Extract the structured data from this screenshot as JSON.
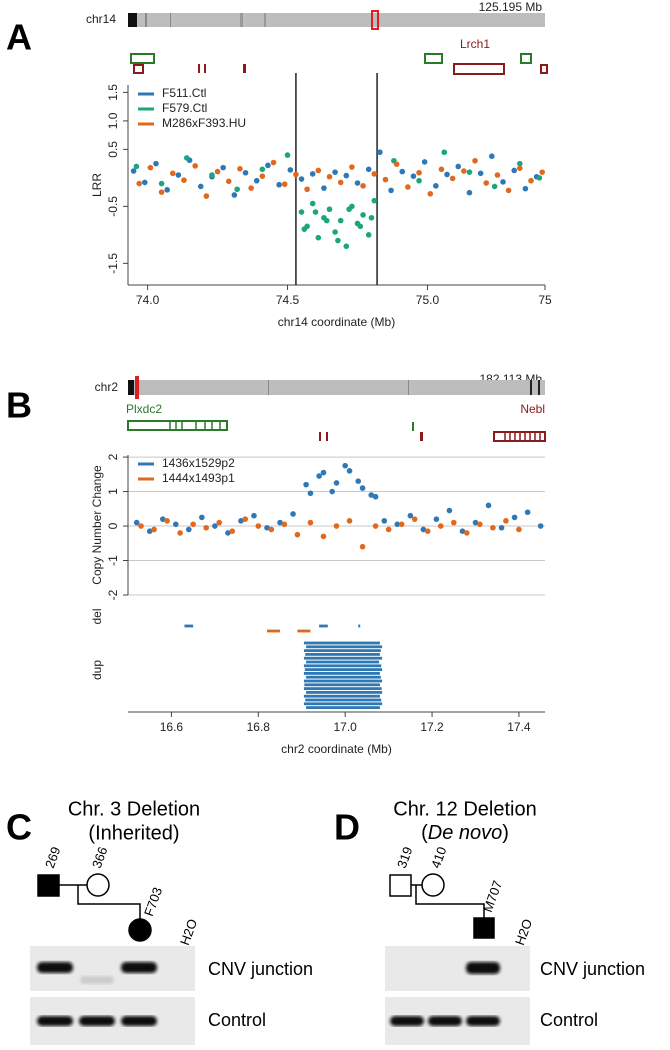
{
  "chart_data": [
    {
      "type": "scatter",
      "panel": "A",
      "chromosome": "chr14",
      "chromosome_size": "125.195 Mb",
      "genes": [
        "Lrch1"
      ],
      "xlabel": "chr14 coordinate (Mb)",
      "ylabel": "LRR",
      "legend": "top-left",
      "xlim": [
        73.93,
        75.42
      ],
      "ylim": [
        -1.88,
        1.63
      ],
      "xticks": [
        {
          "value": 74,
          "label": "74.0"
        },
        74.5,
        {
          "value": 75,
          "label": "75.0"
        },
        {
          "value": 75.42,
          "label": "75"
        }
      ],
      "yticks": [
        1.5,
        {
          "value": 1,
          "label": "1.0"
        },
        0.5,
        -0.5,
        -1.5
      ],
      "vlines": [
        74.53,
        74.82
      ],
      "series": [
        {
          "name": "F511.Ctl",
          "color": "#2f78b5",
          "x": [
            73.95,
            73.99,
            74.03,
            74.07,
            74.11,
            74.15,
            74.19,
            74.23,
            74.27,
            74.31,
            74.35,
            74.39,
            74.43,
            74.47,
            74.51,
            74.55,
            74.59,
            74.63,
            74.67,
            74.71,
            74.75,
            74.79,
            74.83,
            74.87,
            74.91,
            74.95,
            74.99,
            75.03,
            75.07,
            75.11,
            75.15,
            75.19,
            75.23,
            75.27,
            75.31,
            75.35,
            75.39
          ],
          "values": [
            0.12,
            -0.08,
            0.25,
            -0.21,
            0.05,
            0.31,
            -0.15,
            0.02,
            0.18,
            -0.3,
            0.09,
            -0.05,
            0.22,
            -0.12,
            0.14,
            -0.02,
            0.07,
            -0.18,
            0.1,
            0.04,
            -0.09,
            0.15,
            0.45,
            -0.22,
            0.11,
            0.03,
            0.28,
            -0.14,
            0.06,
            0.2,
            -0.26,
            0.08,
            0.38,
            -0.07,
            0.13,
            -0.19,
            0.02
          ]
        },
        {
          "name": "F579.Ctl",
          "color": "#1ca67d",
          "x": [
            73.96,
            74.05,
            74.14,
            74.23,
            74.32,
            74.41,
            74.5,
            74.55,
            74.57,
            74.59,
            74.61,
            74.63,
            74.65,
            74.67,
            74.69,
            74.71,
            74.73,
            74.75,
            74.77,
            74.79,
            74.81,
            74.56,
            74.6,
            74.64,
            74.68,
            74.72,
            74.76,
            74.8,
            74.88,
            74.97,
            75.06,
            75.15,
            75.24,
            75.33,
            75.4
          ],
          "values": [
            0.2,
            -0.1,
            0.35,
            0.05,
            -0.2,
            0.15,
            0.4,
            -0.6,
            -0.85,
            -0.45,
            -1.05,
            -0.7,
            -0.55,
            -0.95,
            -0.75,
            -1.2,
            -0.5,
            -0.8,
            -0.65,
            -1.0,
            -0.4,
            -0.9,
            -0.6,
            -0.75,
            -1.1,
            -0.55,
            -0.85,
            -0.7,
            0.3,
            -0.05,
            0.45,
            0.1,
            -0.15,
            0.25,
            0.0
          ]
        },
        {
          "name": "M286xF393.HU",
          "color": "#e0691f",
          "x": [
            73.97,
            74.01,
            74.05,
            74.09,
            74.13,
            74.17,
            74.21,
            74.25,
            74.29,
            74.33,
            74.37,
            74.41,
            74.45,
            74.49,
            74.53,
            74.57,
            74.61,
            74.65,
            74.69,
            74.73,
            74.77,
            74.81,
            74.85,
            74.89,
            74.93,
            74.97,
            75.01,
            75.05,
            75.09,
            75.13,
            75.17,
            75.21,
            75.25,
            75.29,
            75.33,
            75.37,
            75.41
          ],
          "values": [
            -0.1,
            0.18,
            -0.25,
            0.08,
            -0.04,
            0.21,
            -0.32,
            0.11,
            -0.06,
            0.16,
            -0.18,
            0.03,
            0.27,
            -0.11,
            0.06,
            -0.2,
            0.13,
            0.02,
            -0.08,
            0.19,
            -0.14,
            0.07,
            -0.03,
            0.24,
            -0.16,
            0.09,
            -0.28,
            0.15,
            -0.01,
            0.12,
            0.3,
            -0.09,
            0.05,
            -0.22,
            0.17,
            -0.05,
            0.1
          ]
        }
      ]
    },
    {
      "type": "scatter",
      "panel": "B",
      "chromosome": "chr2",
      "chromosome_size": "182.113 Mb",
      "genes": [
        "Plxdc2",
        "Nebl"
      ],
      "xlabel": "chr2 coordinate (Mb)",
      "ylabel": "Copy Number Change",
      "legend": "top-left",
      "grid": true,
      "xlim": [
        16.5,
        17.46
      ],
      "ylim": [
        -2,
        2.06
      ],
      "xticks": [
        16.6,
        16.8,
        {
          "value": 17,
          "label": "17.0"
        },
        17.2,
        17.4
      ],
      "yticks": [
        2,
        1,
        0,
        -1,
        -2
      ],
      "series": [
        {
          "name": "1436x1529p2",
          "color": "#2f78b5",
          "x": [
            16.52,
            16.55,
            16.58,
            16.61,
            16.64,
            16.67,
            16.7,
            16.73,
            16.76,
            16.79,
            16.82,
            16.85,
            16.88,
            16.91,
            16.94,
            16.97,
            17.0,
            17.03,
            17.06,
            17.09,
            17.12,
            17.15,
            17.18,
            17.21,
            17.24,
            17.27,
            17.3,
            17.33,
            17.36,
            17.39,
            17.42,
            17.45,
            16.92,
            16.95,
            16.98,
            17.01,
            17.04,
            17.07
          ],
          "values": [
            0.1,
            -0.15,
            0.2,
            0.05,
            -0.1,
            0.25,
            0.0,
            -0.2,
            0.15,
            0.3,
            -0.05,
            0.1,
            0.35,
            1.2,
            1.45,
            1.0,
            1.75,
            1.3,
            0.9,
            0.15,
            0.05,
            0.3,
            -0.1,
            0.2,
            0.45,
            -0.15,
            0.1,
            0.6,
            -0.05,
            0.25,
            0.4,
            0.0,
            0.95,
            1.55,
            1.25,
            1.6,
            1.1,
            0.85
          ]
        },
        {
          "name": "1444x1493p1",
          "color": "#e0691f",
          "x": [
            16.53,
            16.56,
            16.59,
            16.62,
            16.65,
            16.68,
            16.71,
            16.74,
            16.77,
            16.8,
            16.83,
            16.86,
            16.89,
            16.92,
            16.95,
            16.98,
            17.01,
            17.04,
            17.07,
            17.1,
            17.13,
            17.16,
            17.19,
            17.22,
            17.25,
            17.28,
            17.31,
            17.34,
            17.37,
            17.4
          ],
          "values": [
            0,
            -0.1,
            0.15,
            -0.2,
            0.05,
            -0.05,
            0.1,
            -0.15,
            0.2,
            0,
            -0.1,
            0.05,
            -0.25,
            0.1,
            -0.3,
            0,
            0.15,
            -0.6,
            0,
            -0.1,
            0.05,
            0.2,
            -0.15,
            0,
            0.1,
            -0.2,
            0.05,
            -0.05,
            0.15,
            -0.1
          ]
        }
      ],
      "tracks": [
        {
          "label": "del",
          "segments": [
            [
              [
                16.63,
                16.65
              ],
              [
                16.94,
                16.96
              ],
              [
                17.03,
                17.033
              ]
            ],
            [
              [
                16.82,
                16.85
              ],
              [
                16.89,
                16.92
              ]
            ]
          ]
        },
        {
          "label": "dup",
          "segments": [
            [
              [
                16.905,
                17.08
              ],
              [
                16.91,
                17.085
              ],
              [
                16.905,
                17.082
              ],
              [
                16.908,
                17.08
              ],
              [
                16.905,
                17.085
              ],
              [
                16.91,
                17.078
              ],
              [
                16.905,
                17.083
              ],
              [
                16.907,
                17.085
              ],
              [
                16.905,
                17.08
              ],
              [
                16.91,
                17.082
              ],
              [
                16.905,
                17.085
              ],
              [
                16.906,
                17.08
              ],
              [
                16.905,
                17.084
              ],
              [
                16.91,
                17.085
              ],
              [
                16.905,
                17.08
              ],
              [
                16.908,
                17.083
              ],
              [
                16.905,
                17.085
              ],
              [
                16.91,
                17.08
              ]
            ],
            []
          ]
        }
      ]
    }
  ],
  "gels": [
    {
      "label": "C",
      "title": "Chr. 3 Deletion",
      "subtitle": "(Inherited)",
      "individuals": [
        "269",
        "366",
        "F703"
      ],
      "blank": "H2O",
      "rows": [
        "CNV junction",
        "Control"
      ]
    },
    {
      "label": "D",
      "title": "Chr. 12 Deletion",
      "subtitle": [
        "(",
        "De novo",
        ")"
      ],
      "individuals": [
        "319",
        "410",
        "M707"
      ],
      "blank": "H2O",
      "rows": [
        "CNV junction",
        "Control"
      ]
    }
  ]
}
